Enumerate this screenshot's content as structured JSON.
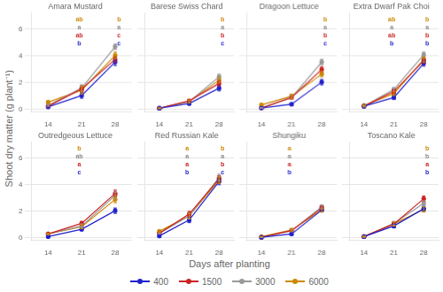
{
  "xlabel": "Days after planting",
  "ylabel": "Shoot dry matter (g plant⁻¹)",
  "legend": "bottom",
  "chart_data": [
    {
      "type": "line",
      "title": "Amara Mustard",
      "x": [
        14,
        21,
        28
      ],
      "xlim": [
        10.5,
        31.5
      ],
      "xticks": [
        14,
        21,
        28
      ],
      "ylim": [
        -0.2,
        7.2
      ],
      "yticks": [
        0,
        2,
        4,
        6
      ],
      "grid": "y",
      "marker": "circle",
      "series": [
        {
          "name": "400",
          "color": "#2222cc",
          "values": [
            0.2,
            1.05,
            3.55
          ],
          "yerr": [
            0.05,
            0.2,
            0.25
          ]
        },
        {
          "name": "1500",
          "color": "#cc2222",
          "values": [
            0.25,
            1.55,
            3.75
          ],
          "yerr": [
            0.05,
            0.25,
            0.2
          ]
        },
        {
          "name": "3000",
          "color": "#999999",
          "values": [
            0.3,
            1.6,
            4.7
          ],
          "yerr": [
            0.05,
            0.25,
            0.2
          ]
        },
        {
          "name": "6000",
          "color": "#cc8800",
          "values": [
            0.55,
            1.45,
            4.05
          ],
          "yerr": [
            0.1,
            0.3,
            0.25
          ]
        }
      ],
      "annotations": [
        {
          "text": "b",
          "x": 20.5,
          "y": 4.9,
          "color": "#2222cc"
        },
        {
          "text": "ab",
          "x": 20.5,
          "y": 5.5,
          "color": "#cc2222"
        },
        {
          "text": "a",
          "x": 20.5,
          "y": 6.1,
          "color": "#888888"
        },
        {
          "text": "ab",
          "x": 20.5,
          "y": 6.7,
          "color": "#cc8800"
        },
        {
          "text": "c",
          "x": 28.8,
          "y": 4.9,
          "color": "#2222cc"
        },
        {
          "text": "c",
          "x": 28.8,
          "y": 5.5,
          "color": "#cc2222"
        },
        {
          "text": "a",
          "x": 28.8,
          "y": 6.1,
          "color": "#888888"
        },
        {
          "text": "b",
          "x": 28.8,
          "y": 6.7,
          "color": "#cc8800"
        }
      ]
    },
    {
      "type": "line",
      "title": "Barese Swiss Chard",
      "x": [
        14,
        21,
        28
      ],
      "xlim": [
        10.5,
        31.5
      ],
      "xticks": [
        14,
        21,
        28
      ],
      "ylim": [
        -0.2,
        7.2
      ],
      "yticks": [
        0,
        2,
        4,
        6
      ],
      "grid": "y",
      "marker": "circle",
      "tick_labels": "x",
      "series": [
        {
          "name": "400",
          "color": "#2222cc",
          "values": [
            0.1,
            0.45,
            1.6
          ],
          "yerr": [
            0.03,
            0.1,
            0.2
          ]
        },
        {
          "name": "1500",
          "color": "#cc2222",
          "values": [
            0.1,
            0.65,
            1.95
          ],
          "yerr": [
            0.03,
            0.1,
            0.2
          ]
        },
        {
          "name": "3000",
          "color": "#999999",
          "values": [
            0.1,
            0.6,
            2.45
          ],
          "yerr": [
            0.03,
            0.1,
            0.2
          ]
        },
        {
          "name": "6000",
          "color": "#cc8800",
          "values": [
            0.1,
            0.6,
            2.2
          ],
          "yerr": [
            0.03,
            0.1,
            0.2
          ]
        }
      ],
      "annotations": [
        {
          "text": "c",
          "x": 28.8,
          "y": 4.9,
          "color": "#2222cc"
        },
        {
          "text": "b",
          "x": 28.8,
          "y": 5.5,
          "color": "#cc2222"
        },
        {
          "text": "a",
          "x": 28.8,
          "y": 6.1,
          "color": "#888888"
        },
        {
          "text": "b",
          "x": 28.8,
          "y": 6.7,
          "color": "#cc8800"
        }
      ]
    },
    {
      "type": "line",
      "title": "Dragoon Lettuce",
      "x": [
        14,
        21,
        28
      ],
      "xlim": [
        10.5,
        31.5
      ],
      "xticks": [
        14,
        21,
        28
      ],
      "ylim": [
        -0.2,
        7.2
      ],
      "yticks": [
        0,
        2,
        4,
        6
      ],
      "grid": "y",
      "marker": "circle",
      "tick_labels": "x",
      "series": [
        {
          "name": "400",
          "color": "#2222cc",
          "values": [
            0.12,
            0.4,
            2.05
          ],
          "yerr": [
            0.03,
            0.08,
            0.2
          ]
        },
        {
          "name": "1500",
          "color": "#cc2222",
          "values": [
            0.12,
            0.9,
            3.0
          ],
          "yerr": [
            0.03,
            0.1,
            0.2
          ]
        },
        {
          "name": "3000",
          "color": "#999999",
          "values": [
            0.12,
            0.9,
            3.55
          ],
          "yerr": [
            0.03,
            0.1,
            0.2
          ]
        },
        {
          "name": "6000",
          "color": "#cc8800",
          "values": [
            0.35,
            1.0,
            2.65
          ],
          "yerr": [
            0.05,
            0.15,
            0.2
          ]
        }
      ],
      "annotations": [
        {
          "text": "c",
          "x": 28.8,
          "y": 4.9,
          "color": "#2222cc"
        },
        {
          "text": "b",
          "x": 28.8,
          "y": 5.5,
          "color": "#cc2222"
        },
        {
          "text": "a",
          "x": 28.8,
          "y": 6.1,
          "color": "#888888"
        },
        {
          "text": "b",
          "x": 28.8,
          "y": 6.7,
          "color": "#cc8800"
        }
      ]
    },
    {
      "type": "line",
      "title": "Extra Dwarf Pak Choi",
      "x": [
        14,
        21,
        28
      ],
      "xlim": [
        10.5,
        31.5
      ],
      "xticks": [
        14,
        21,
        28
      ],
      "ylim": [
        -0.2,
        7.2
      ],
      "yticks": [
        0,
        2,
        4,
        6
      ],
      "grid": "y",
      "marker": "circle",
      "tick_labels": "x",
      "series": [
        {
          "name": "400",
          "color": "#2222cc",
          "values": [
            0.25,
            0.9,
            3.45
          ],
          "yerr": [
            0.05,
            0.15,
            0.2
          ]
        },
        {
          "name": "1500",
          "color": "#cc2222",
          "values": [
            0.25,
            1.35,
            3.65
          ],
          "yerr": [
            0.05,
            0.15,
            0.2
          ]
        },
        {
          "name": "3000",
          "color": "#999999",
          "values": [
            0.25,
            1.5,
            4.1
          ],
          "yerr": [
            0.05,
            0.15,
            0.2
          ]
        },
        {
          "name": "6000",
          "color": "#cc8800",
          "values": [
            0.3,
            1.2,
            3.75
          ],
          "yerr": [
            0.05,
            0.15,
            0.2
          ]
        }
      ],
      "annotations": [
        {
          "text": "b",
          "x": 20.5,
          "y": 4.9,
          "color": "#2222cc"
        },
        {
          "text": "ab",
          "x": 20.5,
          "y": 5.5,
          "color": "#cc2222"
        },
        {
          "text": "a",
          "x": 20.5,
          "y": 6.1,
          "color": "#888888"
        },
        {
          "text": "ab",
          "x": 20.5,
          "y": 6.7,
          "color": "#cc8800"
        },
        {
          "text": "b",
          "x": 28.8,
          "y": 4.9,
          "color": "#2222cc"
        },
        {
          "text": "b",
          "x": 28.8,
          "y": 5.5,
          "color": "#cc2222"
        },
        {
          "text": "a",
          "x": 28.8,
          "y": 6.1,
          "color": "#888888"
        },
        {
          "text": "b",
          "x": 28.8,
          "y": 6.7,
          "color": "#cc8800"
        }
      ]
    },
    {
      "type": "line",
      "title": "Outredgeous Lettuce",
      "x": [
        14,
        21,
        28
      ],
      "xlim": [
        10.5,
        31.5
      ],
      "xticks": [
        14,
        21,
        28
      ],
      "ylim": [
        -0.2,
        7.2
      ],
      "yticks": [
        0,
        2,
        4,
        6
      ],
      "grid": "y",
      "marker": "circle",
      "series": [
        {
          "name": "400",
          "color": "#2222cc",
          "values": [
            0.1,
            0.65,
            2.05
          ],
          "yerr": [
            0.03,
            0.1,
            0.2
          ]
        },
        {
          "name": "1500",
          "color": "#cc2222",
          "values": [
            0.3,
            1.1,
            3.35
          ],
          "yerr": [
            0.05,
            0.15,
            0.25
          ]
        },
        {
          "name": "3000",
          "color": "#999999",
          "values": [
            0.3,
            0.9,
            3.2
          ],
          "yerr": [
            0.05,
            0.15,
            0.25
          ]
        },
        {
          "name": "6000",
          "color": "#cc8800",
          "values": [
            0.3,
            0.85,
            2.9
          ],
          "yerr": [
            0.05,
            0.15,
            0.25
          ]
        }
      ],
      "annotations": [
        {
          "text": "c",
          "x": 20.5,
          "y": 4.9,
          "color": "#2222cc"
        },
        {
          "text": "a",
          "x": 20.5,
          "y": 5.5,
          "color": "#cc2222"
        },
        {
          "text": "ab",
          "x": 20.5,
          "y": 6.1,
          "color": "#888888"
        },
        {
          "text": "b",
          "x": 20.5,
          "y": 6.7,
          "color": "#cc8800"
        }
      ]
    },
    {
      "type": "line",
      "title": "Red Russian Kale",
      "x": [
        14,
        21,
        28
      ],
      "xlim": [
        10.5,
        31.5
      ],
      "xticks": [
        14,
        21,
        28
      ],
      "ylim": [
        -0.2,
        7.2
      ],
      "yticks": [
        0,
        2,
        4,
        6
      ],
      "grid": "y",
      "marker": "circle",
      "tick_labels": "x",
      "series": [
        {
          "name": "400",
          "color": "#2222cc",
          "values": [
            0.15,
            1.35,
            4.25
          ],
          "yerr": [
            0.05,
            0.2,
            0.25
          ]
        },
        {
          "name": "1500",
          "color": "#cc2222",
          "values": [
            0.35,
            1.8,
            4.45
          ],
          "yerr": [
            0.05,
            0.2,
            0.25
          ]
        },
        {
          "name": "3000",
          "color": "#999999",
          "values": [
            0.35,
            1.65,
            4.55
          ],
          "yerr": [
            0.05,
            0.2,
            0.25
          ]
        },
        {
          "name": "6000",
          "color": "#cc8800",
          "values": [
            0.5,
            1.65,
            4.35
          ],
          "yerr": [
            0.05,
            0.2,
            0.25
          ]
        }
      ],
      "annotations": [
        {
          "text": "b",
          "x": 20.5,
          "y": 4.9,
          "color": "#2222cc"
        },
        {
          "text": "a",
          "x": 20.5,
          "y": 5.5,
          "color": "#cc2222"
        },
        {
          "text": "a",
          "x": 20.5,
          "y": 6.1,
          "color": "#888888"
        },
        {
          "text": "a",
          "x": 20.5,
          "y": 6.7,
          "color": "#cc8800"
        },
        {
          "text": "c",
          "x": 28.8,
          "y": 4.9,
          "color": "#2222cc"
        },
        {
          "text": "b",
          "x": 28.8,
          "y": 5.5,
          "color": "#cc2222"
        },
        {
          "text": "a",
          "x": 28.8,
          "y": 6.1,
          "color": "#888888"
        },
        {
          "text": "b",
          "x": 28.8,
          "y": 6.7,
          "color": "#cc8800"
        }
      ]
    },
    {
      "type": "line",
      "title": "Shungiku",
      "x": [
        14,
        21,
        28
      ],
      "xlim": [
        10.5,
        31.5
      ],
      "xticks": [
        14,
        21,
        28
      ],
      "ylim": [
        -0.2,
        7.2
      ],
      "yticks": [
        0,
        2,
        4,
        6
      ],
      "grid": "y",
      "marker": "circle",
      "tick_labels": "x",
      "series": [
        {
          "name": "400",
          "color": "#2222cc",
          "values": [
            0.05,
            0.3,
            2.1
          ],
          "yerr": [
            0.02,
            0.08,
            0.15
          ]
        },
        {
          "name": "1500",
          "color": "#cc2222",
          "values": [
            0.05,
            0.55,
            2.25
          ],
          "yerr": [
            0.02,
            0.08,
            0.15
          ]
        },
        {
          "name": "3000",
          "color": "#999999",
          "values": [
            0.05,
            0.55,
            2.35
          ],
          "yerr": [
            0.02,
            0.08,
            0.15
          ]
        },
        {
          "name": "6000",
          "color": "#cc8800",
          "values": [
            0.1,
            0.6,
            2.1
          ],
          "yerr": [
            0.02,
            0.08,
            0.15
          ]
        }
      ],
      "annotations": [
        {
          "text": "b",
          "x": 20.5,
          "y": 4.9,
          "color": "#2222cc"
        },
        {
          "text": "a",
          "x": 20.5,
          "y": 5.5,
          "color": "#cc2222"
        },
        {
          "text": "a",
          "x": 20.5,
          "y": 6.1,
          "color": "#888888"
        },
        {
          "text": "a",
          "x": 20.5,
          "y": 6.7,
          "color": "#cc8800"
        }
      ]
    },
    {
      "type": "line",
      "title": "Toscano Kale",
      "x": [
        14,
        21,
        28
      ],
      "xlim": [
        10.5,
        31.5
      ],
      "xticks": [
        14,
        21,
        28
      ],
      "ylim": [
        -0.2,
        7.2
      ],
      "yticks": [
        0,
        2,
        4,
        6
      ],
      "grid": "y",
      "marker": "circle",
      "tick_labels": "x",
      "series": [
        {
          "name": "400",
          "color": "#2222cc",
          "values": [
            0.1,
            0.9,
            2.2
          ],
          "yerr": [
            0.04,
            0.15,
            0.2
          ]
        },
        {
          "name": "1500",
          "color": "#cc2222",
          "values": [
            0.1,
            1.05,
            2.95
          ],
          "yerr": [
            0.04,
            0.15,
            0.2
          ]
        },
        {
          "name": "3000",
          "color": "#999999",
          "values": [
            0.1,
            1.1,
            2.6
          ],
          "yerr": [
            0.04,
            0.15,
            0.2
          ]
        },
        {
          "name": "6000",
          "color": "#cc8800",
          "values": [
            0.1,
            1.05,
            2.15
          ],
          "yerr": [
            0.04,
            0.15,
            0.2
          ]
        }
      ],
      "annotations": [
        {
          "text": "b",
          "x": 28.8,
          "y": 4.9,
          "color": "#2222cc"
        },
        {
          "text": "a",
          "x": 28.8,
          "y": 5.5,
          "color": "#cc2222"
        },
        {
          "text": "b",
          "x": 28.8,
          "y": 6.1,
          "color": "#888888"
        },
        {
          "text": "b",
          "x": 28.8,
          "y": 6.7,
          "color": "#cc8800"
        }
      ]
    }
  ]
}
